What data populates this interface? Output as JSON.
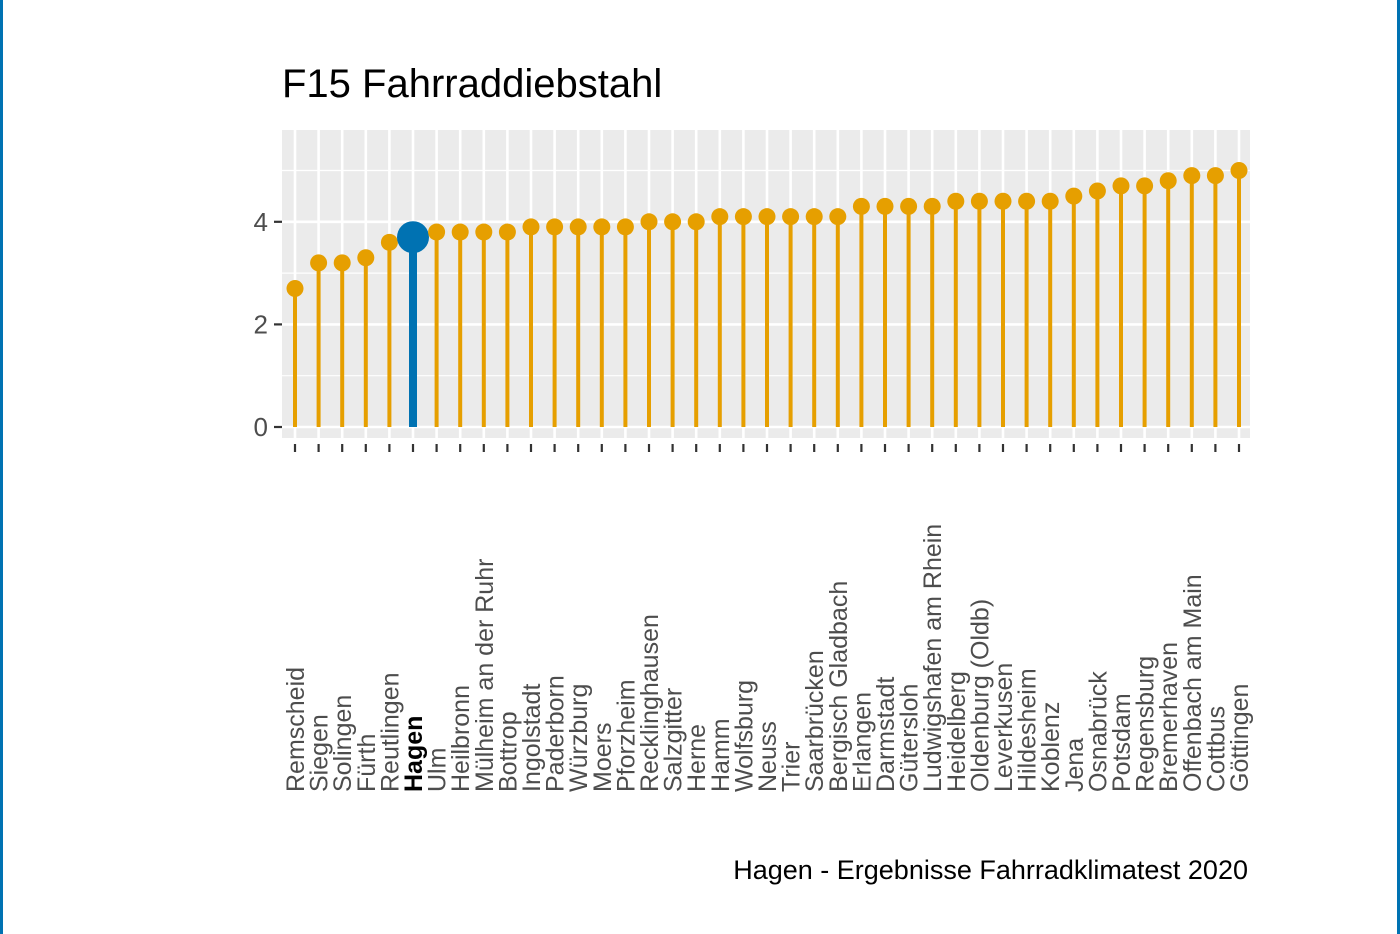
{
  "chart_data": {
    "type": "lollipop",
    "title": "F15 Fahrraddiebstahl",
    "caption": "Hagen - Ergebnisse Fahrradklimatest 2020",
    "ylim": [
      0,
      5.6
    ],
    "yticks": [
      0,
      2,
      4
    ],
    "grid": true,
    "highlight": "Hagen",
    "colors": {
      "default": "#E69F00",
      "highlight": "#0072B2",
      "panel": "#EBEBEB",
      "grid": "#FFFFFF"
    },
    "categories": [
      "Remscheid",
      "Siegen",
      "Solingen",
      "Fürth",
      "Reutlingen",
      "Hagen",
      "Ulm",
      "Heilbronn",
      "Mülheim an der Ruhr",
      "Bottrop",
      "Ingolstadt",
      "Paderborn",
      "Würzburg",
      "Moers",
      "Pforzheim",
      "Recklinghausen",
      "Salzgitter",
      "Herne",
      "Hamm",
      "Wolfsburg",
      "Neuss",
      "Trier",
      "Saarbrücken",
      "Bergisch Gladbach",
      "Erlangen",
      "Darmstadt",
      "Gütersloh",
      "Ludwigshafen am Rhein",
      "Heidelberg",
      "Oldenburg (Oldb)",
      "Leverkusen",
      "Hildesheim",
      "Koblenz",
      "Jena",
      "Osnabrück",
      "Potsdam",
      "Regensburg",
      "Bremerhaven",
      "Offenbach am Main",
      "Cottbus",
      "Göttingen"
    ],
    "values": [
      2.7,
      3.2,
      3.2,
      3.3,
      3.6,
      3.7,
      3.8,
      3.8,
      3.8,
      3.8,
      3.9,
      3.9,
      3.9,
      3.9,
      3.9,
      4.0,
      4.0,
      4.0,
      4.1,
      4.1,
      4.1,
      4.1,
      4.1,
      4.1,
      4.3,
      4.3,
      4.3,
      4.3,
      4.4,
      4.4,
      4.4,
      4.4,
      4.4,
      4.5,
      4.6,
      4.7,
      4.7,
      4.8,
      4.9,
      4.9,
      5.0
    ]
  }
}
